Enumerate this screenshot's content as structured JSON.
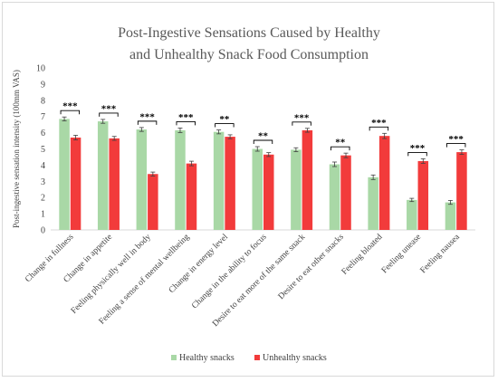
{
  "chart_data": {
    "type": "bar",
    "title_line1": "Post-Ingestive Sensations Caused by Healthy",
    "title_line2": "and Unhealthy Snack Food Consumption",
    "ylabel": "Post-ingestive sensation intensity (100mm VAS)",
    "xlabel": "",
    "ylim": [
      0,
      10
    ],
    "yticks": [
      "0",
      "1",
      "2",
      "3",
      "4",
      "5",
      "6",
      "7",
      "8",
      "9",
      "10"
    ],
    "grid": false,
    "legend_position": "bottom",
    "categories": [
      "Change in fullness",
      "Change in appetite",
      "Feeling physically well in body",
      "Feeling a sense of mental wellbeing",
      "Change in energy level",
      "Change in the ability to focus",
      "Desire to eat more of the same snack",
      "Desire to eat other snacks",
      "Feeling bloated",
      "Feeling unease",
      "Feeling nausea"
    ],
    "series": [
      {
        "name": "Healthy snacks",
        "color": "#a9d8a6",
        "values": [
          6.85,
          6.7,
          6.2,
          6.15,
          6.05,
          5.0,
          4.95,
          4.05,
          3.25,
          1.85,
          1.7
        ],
        "errors": [
          0.12,
          0.12,
          0.12,
          0.14,
          0.12,
          0.14,
          0.12,
          0.14,
          0.14,
          0.1,
          0.12
        ]
      },
      {
        "name": "Unhealthy snacks",
        "color": "#f23b3b",
        "values": [
          5.7,
          5.65,
          3.45,
          4.1,
          5.75,
          4.65,
          6.15,
          4.6,
          5.8,
          4.25,
          4.8
        ]
      }
    ],
    "errors_unhealthy": [
      0.14,
      0.12,
      0.12,
      0.14,
      0.12,
      0.12,
      0.12,
      0.14,
      0.16,
      0.14,
      0.14
    ],
    "significance": [
      "***",
      "***",
      "***",
      "***",
      "**",
      "**",
      "***",
      "**",
      "***",
      "***",
      "***"
    ]
  }
}
